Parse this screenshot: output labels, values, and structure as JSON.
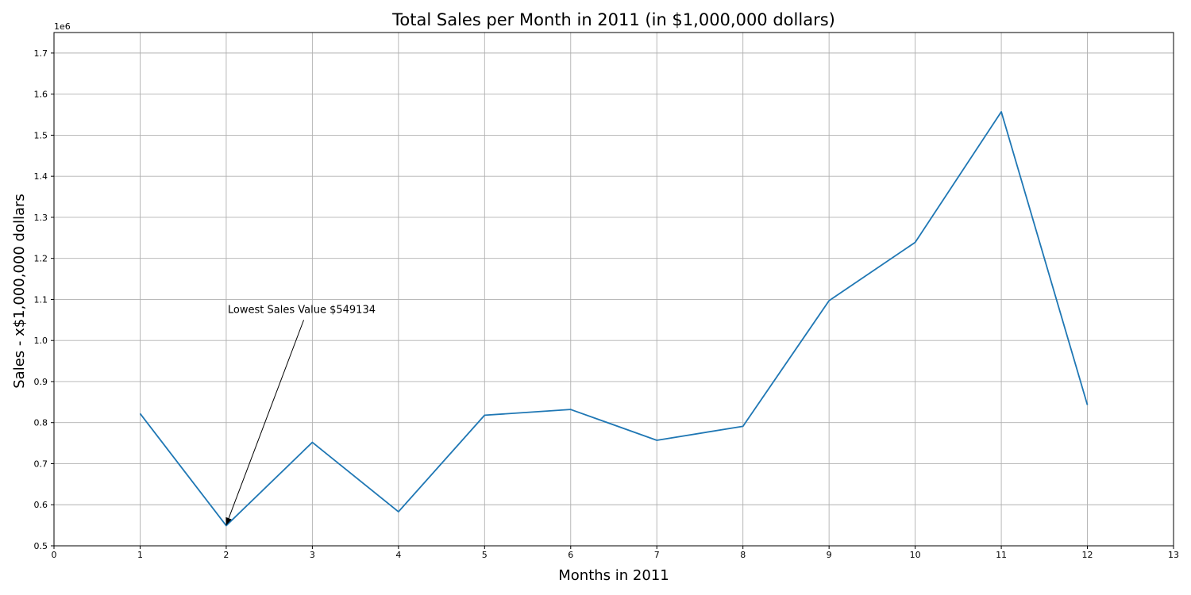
{
  "chart_data": {
    "type": "line",
    "title": "Total Sales per Month in 2011 (in $1,000,000 dollars)",
    "xlabel": "Months in 2011",
    "ylabel": "Sales - x$1,000,000 dollars",
    "y_offset_label": "1e6",
    "y_display_scale": 1000000,
    "xlim": [
      0,
      13
    ],
    "ylim": [
      500000,
      1750000
    ],
    "x_ticks": [
      0,
      1,
      2,
      3,
      4,
      5,
      6,
      7,
      8,
      9,
      10,
      11,
      12,
      13
    ],
    "y_ticks": [
      500000,
      600000,
      700000,
      800000,
      900000,
      1000000,
      1100000,
      1200000,
      1300000,
      1400000,
      1500000,
      1600000,
      1700000
    ],
    "grid": true,
    "line_color": "#1f77b4",
    "series": [
      {
        "x": [
          1,
          2,
          3,
          4,
          5,
          6,
          7,
          8,
          9,
          10,
          11,
          12
        ],
        "values": [
          822000,
          549134,
          752000,
          583000,
          818000,
          832000,
          757000,
          791000,
          1097000,
          1239000,
          1557000,
          843000
        ]
      }
    ],
    "annotation": {
      "text": "Lowest Sales Value $549134",
      "point": [
        2,
        549134
      ],
      "text_position": [
        2.9,
        1050000
      ]
    }
  }
}
